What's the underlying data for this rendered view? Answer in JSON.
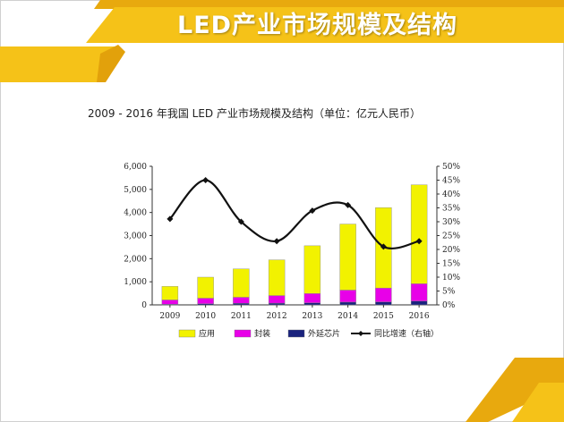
{
  "slide": {
    "title": "LED产业市场规模及结构"
  },
  "colors": {
    "accent": "#F5C218",
    "apply": "#F2F200",
    "package": "#E800E8",
    "chip": "#1A237E",
    "line": "#111111"
  },
  "chart_data": {
    "type": "bar",
    "title": "2009 - 2016 年我国 LED 产业市场规模及结构（单位：亿元人民币）",
    "categories": [
      "2009",
      "2010",
      "2011",
      "2012",
      "2013",
      "2014",
      "2015",
      "2016"
    ],
    "stacked": true,
    "series": [
      {
        "name": "外延芯片",
        "type": "bar",
        "axis": "left",
        "color": "#1A237E",
        "values": [
          25,
          50,
          70,
          75,
          90,
          120,
          130,
          165
        ]
      },
      {
        "name": "封装",
        "type": "bar",
        "axis": "left",
        "color": "#E800E8",
        "values": [
          190,
          240,
          260,
          330,
          400,
          520,
          600,
          750
        ]
      },
      {
        "name": "应用",
        "type": "bar",
        "axis": "left",
        "color": "#F2F200",
        "values": [
          585,
          910,
          1230,
          1545,
          2070,
          2860,
          3480,
          4285
        ]
      },
      {
        "name": "同比增速（右轴）",
        "type": "line",
        "axis": "right",
        "color": "#111111",
        "values": [
          0.31,
          0.45,
          0.3,
          0.23,
          0.34,
          0.36,
          0.21,
          0.23
        ]
      }
    ],
    "y_left": {
      "min": 0,
      "max": 6000,
      "ticks": [
        "0",
        "1,000",
        "2,000",
        "3,000",
        "4,000",
        "5,000",
        "6,000"
      ]
    },
    "y_right": {
      "min": 0,
      "max": 0.5,
      "ticks": [
        "0%",
        "5%",
        "10%",
        "15%",
        "20%",
        "25%",
        "30%",
        "35%",
        "40%",
        "45%",
        "50%"
      ]
    },
    "legend": {
      "position": "bottom",
      "items": [
        "应用",
        "封装",
        "外延芯片",
        "同比增速（右轴）"
      ]
    },
    "grid": false
  }
}
